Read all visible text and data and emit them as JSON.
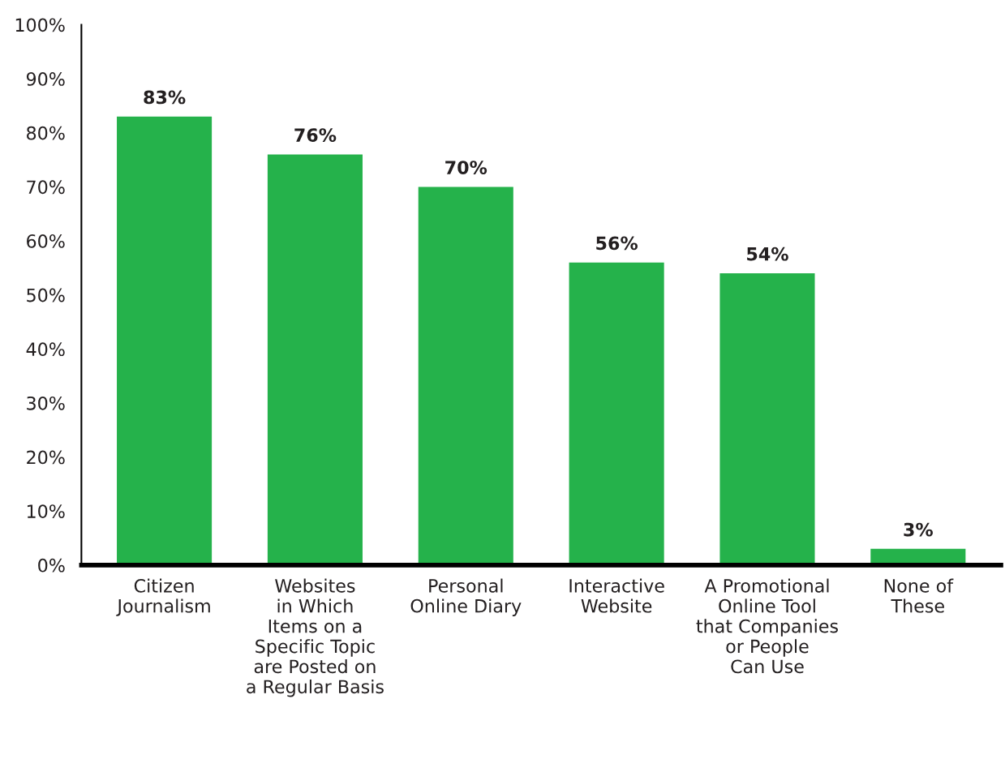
{
  "chart_data": {
    "type": "bar",
    "categories": [
      "Citizen\nJournalism",
      "Websites\nin Which\nItems on a\nSpecific Topic\nare Posted on\na Regular Basis",
      "Personal\nOnline Diary",
      "Interactive\nWebsite",
      "A Promotional\nOnline Tool\nthat Companies\nor People\nCan Use",
      "None of\nThese"
    ],
    "values": [
      83,
      76,
      70,
      56,
      54,
      3
    ],
    "value_labels": [
      "83%",
      "76%",
      "70%",
      "56%",
      "54%",
      "3%"
    ],
    "color": "#25b24b",
    "ylim": [
      0,
      100
    ],
    "yticks": [
      {
        "value": 0,
        "label": "0%"
      },
      {
        "value": 10,
        "label": "10%"
      },
      {
        "value": 20,
        "label": "20%"
      },
      {
        "value": 30,
        "label": "30%"
      },
      {
        "value": 40,
        "label": "40%"
      },
      {
        "value": 50,
        "label": "50%"
      },
      {
        "value": 60,
        "label": "60%"
      },
      {
        "value": 70,
        "label": "70%"
      },
      {
        "value": 80,
        "label": "80%"
      },
      {
        "value": 90,
        "label": "90%"
      },
      {
        "value": 100,
        "label": "100%"
      }
    ],
    "grid": false,
    "legend": false
  }
}
